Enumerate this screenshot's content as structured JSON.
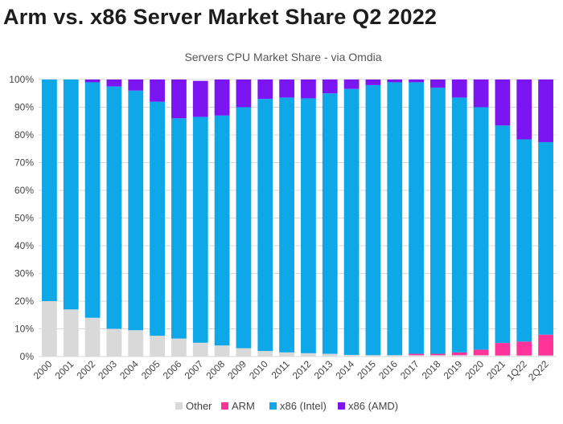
{
  "page": {
    "heading": "Arm vs. x86 Server Market Share Q2 2022"
  },
  "chart_data": {
    "type": "bar",
    "stacked": true,
    "title": "Servers CPU Market Share - via Omdia",
    "xlabel": "",
    "ylabel": "",
    "ylim": [
      0,
      100
    ],
    "y_ticks": [
      "0%",
      "10%",
      "20%",
      "30%",
      "40%",
      "50%",
      "60%",
      "70%",
      "80%",
      "90%",
      "100%"
    ],
    "grid": true,
    "legend_position": "bottom",
    "categories": [
      "2000",
      "2001",
      "2002",
      "2003",
      "2004",
      "2005",
      "2006",
      "2007",
      "2008",
      "2009",
      "2010",
      "2011",
      "2012",
      "2013",
      "2014",
      "2015",
      "2016",
      "2017",
      "2018",
      "2019",
      "2020",
      "2021",
      "1Q22",
      "2Q22"
    ],
    "series": [
      {
        "name": "Other",
        "color": "#d9d9d9",
        "values": [
          20,
          17,
          14,
          10,
          9.5,
          7.5,
          6.5,
          5,
          4,
          3,
          2,
          1.5,
          1.2,
          1,
          0.6,
          0.5,
          0.5,
          0.5,
          0.5,
          0.5,
          0.5,
          0.4,
          0.4,
          0.4
        ]
      },
      {
        "name": "ARM",
        "color": "#ff3399",
        "values": [
          0,
          0,
          0,
          0,
          0,
          0,
          0,
          0,
          0,
          0,
          0,
          0,
          0,
          0,
          0,
          0,
          0,
          0.5,
          0.5,
          1,
          2,
          4.5,
          5,
          7.5
        ]
      },
      {
        "name": "x86 (Intel)",
        "color": "#0ea8e8",
        "values": [
          80,
          83,
          85,
          87.5,
          86.5,
          84.5,
          79.5,
          81.5,
          83,
          87,
          91,
          92,
          92,
          94,
          96,
          97.5,
          98.5,
          98,
          96,
          92,
          87.5,
          78.5,
          73,
          69.5
        ]
      },
      {
        "name": "x86 (AMD)",
        "color": "#7b16f2",
        "values": [
          0,
          0,
          1,
          2.5,
          4,
          8,
          14,
          13,
          13,
          10,
          7,
          6.5,
          6.8,
          5,
          3.4,
          2,
          1,
          1,
          3,
          6.5,
          10,
          16.6,
          21.6,
          22.6
        ]
      }
    ]
  }
}
